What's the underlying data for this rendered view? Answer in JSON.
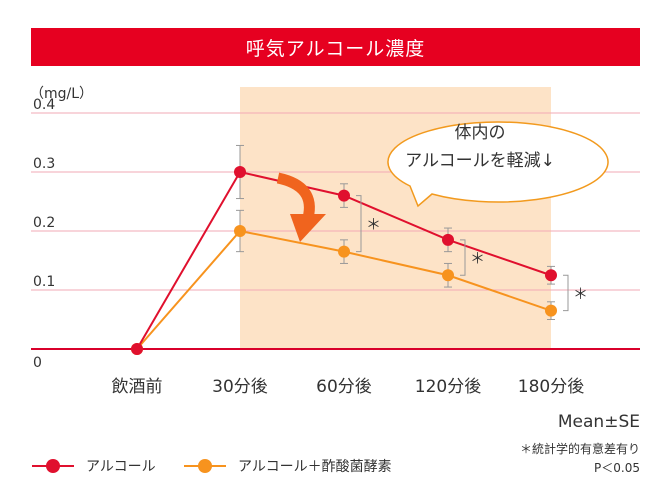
{
  "title": "呼気アルコール濃度",
  "colors": {
    "accent": "#e60020",
    "series1": "#e0102e",
    "series2": "#f7931e",
    "highlight": "#fde3c7",
    "grid": "#f2a9b4",
    "baseline": "#d9002b",
    "callout_border": "#f29a1e",
    "arrow": "#f0641e",
    "error_bar": "#999999"
  },
  "callout": {
    "line1": "体内の",
    "line2": "アルコールを軽減↓"
  },
  "notes": {
    "mean": "Mean±SE",
    "sig_line1": "＊統計学的有意差有り",
    "sig_line2": "P＜0.05",
    "sig_mark": "＊"
  },
  "chart_data": {
    "type": "line",
    "title": "呼気アルコール濃度",
    "ylabel": "（mg/L）",
    "xlabel": "",
    "categories": [
      "飲酒前",
      "30分後",
      "60分後",
      "120分後",
      "180分後"
    ],
    "ylim": [
      0,
      0.4
    ],
    "yticks": [
      {
        "label": "0",
        "value": 0
      },
      {
        "label": "0.1",
        "value": 0.1
      },
      {
        "label": "0.2",
        "value": 0.2
      },
      {
        "label": "0.3",
        "value": 0.3
      },
      {
        "label": "0.4",
        "value": 0.4
      }
    ],
    "grid": true,
    "highlight_range": [
      "30分後",
      "180分後"
    ],
    "legend_position": "bottom-left",
    "series": [
      {
        "name": "アルコール",
        "values": [
          0,
          0.3,
          0.26,
          0.185,
          0.125
        ],
        "errors": [
          0,
          0.045,
          0.02,
          0.02,
          0.015
        ]
      },
      {
        "name": "アルコール＋酢酸菌酵素",
        "values": [
          0,
          0.2,
          0.165,
          0.125,
          0.065
        ],
        "errors": [
          0,
          0.035,
          0.02,
          0.02,
          0.015
        ]
      }
    ],
    "significance": [
      {
        "category": "60分後",
        "mark": "＊"
      },
      {
        "category": "120分後",
        "mark": "＊"
      },
      {
        "category": "180分後",
        "mark": "＊"
      }
    ]
  }
}
